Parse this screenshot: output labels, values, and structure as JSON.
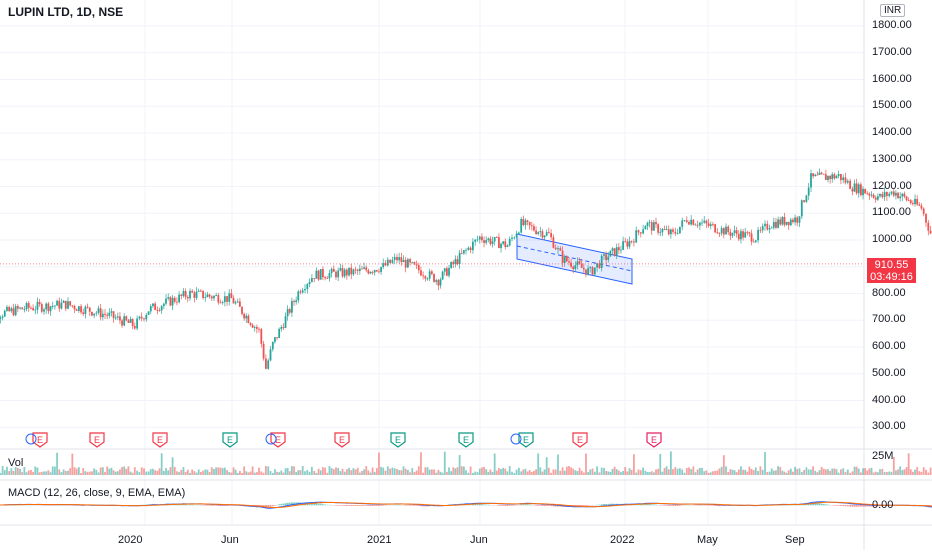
{
  "header": {
    "title": "LUPIN LTD, 1D, NSE",
    "currency": "INR"
  },
  "price_axis": {
    "labels": [
      "1800.00",
      "1700.00",
      "1600.00",
      "1500.00",
      "1400.00",
      "1300.00",
      "1200.00",
      "1100.00",
      "1000.00",
      "900.00",
      "800.00",
      "700.00",
      "600.00",
      "500.00",
      "400.00",
      "300.00"
    ],
    "current_price": "910.55",
    "countdown": "03:49:16"
  },
  "time_axis": {
    "labels": [
      "2020",
      "Jun",
      "2021",
      "Jun",
      "2022",
      "May",
      "Sep"
    ]
  },
  "volume_pane": {
    "label": "Vol",
    "scale_label": "25M"
  },
  "macd_pane": {
    "label": "MACD (12, 26, close, 9, EMA, EMA)",
    "zero_label": "0.00"
  },
  "earnings_markers": [
    "E",
    "E",
    "E",
    "E",
    "E",
    "E",
    "E",
    "E",
    "E",
    "E",
    "E",
    "E"
  ],
  "colors": {
    "up": "#26a69a",
    "down": "#ef5350",
    "price_tag": "#f23645",
    "channel": "#2962ff",
    "macd": "#2962ff",
    "signal": "#ff6d00",
    "earnings_past_red": "#f23645",
    "earnings_past_green": "#089981",
    "earnings_future": "#e91e63"
  },
  "chart_data": {
    "type": "candlestick",
    "symbol": "LUPIN LTD",
    "interval": "1D",
    "exchange": "NSE",
    "y_range": [
      250,
      1850
    ],
    "series": [
      {
        "name": "close",
        "points": [
          [
            "2019-09",
            710
          ],
          [
            "2019-10",
            745
          ],
          [
            "2019-11",
            760
          ],
          [
            "2019-12",
            720
          ],
          [
            "2019-12-20",
            680
          ],
          [
            "2020-01",
            740
          ],
          [
            "2020-02",
            800
          ],
          [
            "2020-03",
            780
          ],
          [
            "2020-03-20",
            660
          ],
          [
            "2020-03-25",
            520
          ],
          [
            "2020-04",
            610
          ],
          [
            "2020-04-20",
            820
          ],
          [
            "2020-05",
            870
          ],
          [
            "2020-06",
            880
          ],
          [
            "2020-06-20",
            900
          ],
          [
            "2020-07",
            930
          ],
          [
            "2020-08",
            850
          ],
          [
            "2020-08-20",
            960
          ],
          [
            "2020-09",
            1010
          ],
          [
            "2020-09-20",
            980
          ],
          [
            "2020-10",
            1060
          ],
          [
            "2020-10-20",
            1020
          ],
          [
            "2020-11",
            930
          ],
          [
            "2020-11-20",
            880
          ],
          [
            "2020-12",
            930
          ],
          [
            "2020-12-20",
            1000
          ],
          [
            "2021-01",
            1060
          ],
          [
            "2021-01-20",
            1020
          ],
          [
            "2021-02",
            1080
          ],
          [
            "2021-03",
            1030
          ],
          [
            "2021-03-20",
            1010
          ],
          [
            "2021-04",
            1060
          ],
          [
            "2021-04-20",
            1080
          ],
          [
            "2021-05",
            1230
          ],
          [
            "2021-05-20",
            1240
          ],
          [
            "2021-06",
            1200
          ],
          [
            "2021-06-20",
            1160
          ],
          [
            "2021-07",
            1180
          ],
          [
            "2021-07-20",
            1120
          ],
          [
            "2021-08",
            980
          ],
          [
            "2021-08-20",
            960
          ],
          [
            "2021-09",
            990
          ],
          [
            "2021-09-20",
            960
          ],
          [
            "2021-10",
            945
          ],
          [
            "2021-10-20",
            930
          ],
          [
            "2021-11",
            910.55
          ]
        ]
      }
    ]
  }
}
